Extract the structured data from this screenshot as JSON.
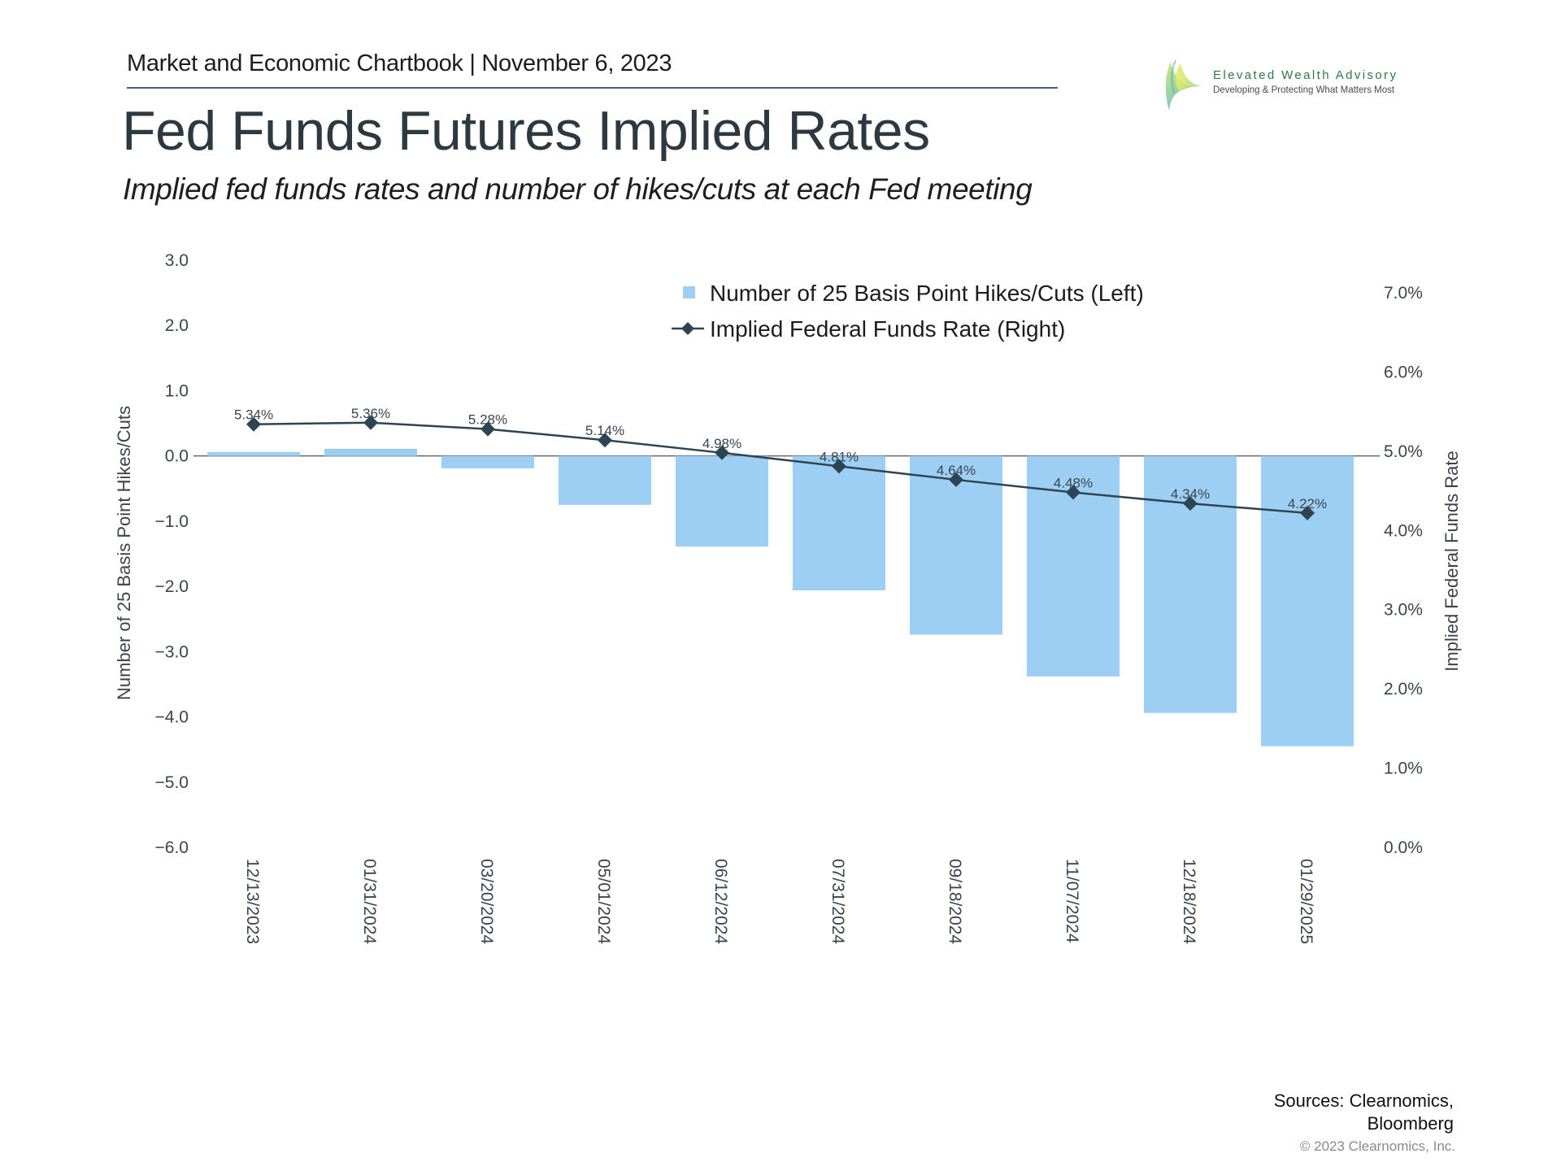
{
  "header": {
    "chartbook": "Market and Economic Chartbook | November 6, 2023",
    "title": "Fed Funds Futures Implied Rates",
    "subtitle": "Implied fed funds rates and number of hikes/cuts at each Fed meeting"
  },
  "logo": {
    "name": "Elevated Wealth Advisory",
    "tagline": "Developing & Protecting What Matters Most"
  },
  "footer": {
    "sources_line1": "Sources: Clearnomics,",
    "sources_line2": "Bloomberg",
    "copyright": "© 2023 Clearnomics, Inc."
  },
  "colors": {
    "bar": "#9dcff5",
    "line": "#2e4453",
    "zero_line": "#666666",
    "text": "#3a444c"
  },
  "chart_data": {
    "type": "bar",
    "title": "Fed Funds Futures Implied Rates",
    "categories": [
      "12/13/2023",
      "01/31/2024",
      "03/20/2024",
      "05/01/2024",
      "06/12/2024",
      "07/31/2024",
      "09/18/2024",
      "11/07/2024",
      "12/18/2024",
      "01/29/2025"
    ],
    "series": [
      {
        "name": "Number of 25 Basis Point Hikes/Cuts (Left)",
        "type": "bar",
        "axis": "left",
        "values": [
          0.06,
          0.11,
          -0.19,
          -0.75,
          -1.39,
          -2.06,
          -2.74,
          -3.38,
          -3.94,
          -4.45
        ]
      },
      {
        "name": "Implied Federal Funds Rate (Right)",
        "type": "line",
        "axis": "right",
        "marker": "diamond",
        "values": [
          5.34,
          5.36,
          5.28,
          5.14,
          4.98,
          4.81,
          4.64,
          4.48,
          4.34,
          4.22
        ],
        "labels": [
          "5.34%",
          "5.36%",
          "5.28%",
          "5.14%",
          "4.98%",
          "4.81%",
          "4.64%",
          "4.48%",
          "4.34%",
          "4.22%"
        ]
      }
    ],
    "left_axis": {
      "label": "Number of 25 Basis Point Hikes/Cuts",
      "range": [
        -6,
        3
      ],
      "ticks": [
        "3.0",
        "2.0",
        "1.0",
        "0.0",
        "−1.0",
        "−2.0",
        "−3.0",
        "−4.0",
        "−5.0",
        "−6.0"
      ],
      "tick_values": [
        3,
        2,
        1,
        0,
        -1,
        -2,
        -3,
        -4,
        -5,
        -6
      ]
    },
    "right_axis": {
      "label": "Implied Federal Funds Rate",
      "range": [
        0,
        7
      ],
      "ticks": [
        "7.0%",
        "6.0%",
        "5.0%",
        "4.0%",
        "3.0%",
        "2.0%",
        "1.0%",
        "0.0%"
      ],
      "tick_values": [
        7,
        6,
        5,
        4,
        3,
        2,
        1,
        0
      ]
    },
    "legend_position": "top-center",
    "grid": false,
    "zero_line": true
  }
}
